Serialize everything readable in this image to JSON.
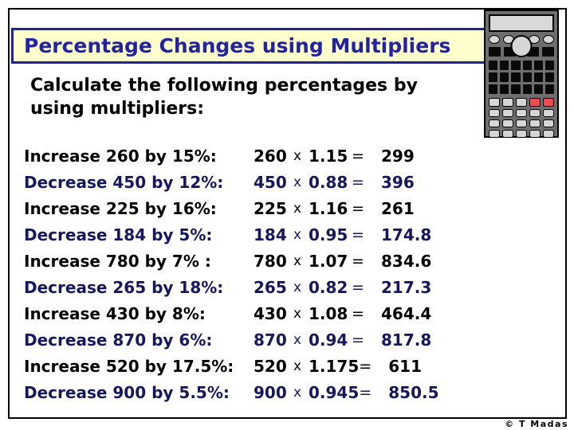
{
  "title_bar": {
    "text": "Percentage Changes using Multipliers",
    "bg": "#FFFFCC",
    "border_color": "#2121A0",
    "text_color": "#2222A2"
  },
  "subtitle": {
    "line1": "Calculate the following percentages by",
    "line2": "using multipliers:"
  },
  "symbols": {
    "times": "x",
    "equals": "="
  },
  "colors": {
    "navy": "#17175E",
    "black": "#000000"
  },
  "rows": [
    {
      "label": "Increase 260 by 15%:",
      "value": "260",
      "multiplier": "1.15",
      "result": "299",
      "color": "black"
    },
    {
      "label": "Decrease 450 by 12%:",
      "value": "450",
      "multiplier": "0.88",
      "result": "396",
      "color": "navy"
    },
    {
      "label": "Increase 225 by 16%:",
      "value": "225",
      "multiplier": "1.16",
      "result": "261",
      "color": "black"
    },
    {
      "label": "Decrease 184 by 5%:",
      "value": "184",
      "multiplier": "0.95",
      "result": "174.8",
      "color": "navy"
    },
    {
      "label": "Increase 780 by 7% :",
      "value": "780",
      "multiplier": "1.07",
      "result": "834.6",
      "color": "black"
    },
    {
      "label": "Decrease 265 by 18%:",
      "value": "265",
      "multiplier": "0.82",
      "result": "217.3",
      "color": "navy"
    },
    {
      "label": "Increase 430 by 8%:",
      "value": "430",
      "multiplier": "1.08",
      "result": "464.4",
      "color": "black"
    },
    {
      "label": "Decrease 870 by 6%:",
      "value": "870",
      "multiplier": "0.94",
      "result": "817.8",
      "color": "navy"
    },
    {
      "label": "Increase 520 by 17.5%:",
      "value": "520",
      "multiplier": "1.175",
      "result": "611",
      "color": "black"
    },
    {
      "label": "Decrease 900 by 5.5%:",
      "value": "900",
      "multiplier": "0.945",
      "result": "850.5",
      "color": "navy"
    }
  ],
  "footer": {
    "credit": "© T Madas"
  },
  "calculator": {
    "body": "#6E6E6E",
    "display": "#D9D9D9",
    "key_dark": "#0A0A0A",
    "key_light": "#D6D6D6",
    "key_red": "#E85050"
  }
}
